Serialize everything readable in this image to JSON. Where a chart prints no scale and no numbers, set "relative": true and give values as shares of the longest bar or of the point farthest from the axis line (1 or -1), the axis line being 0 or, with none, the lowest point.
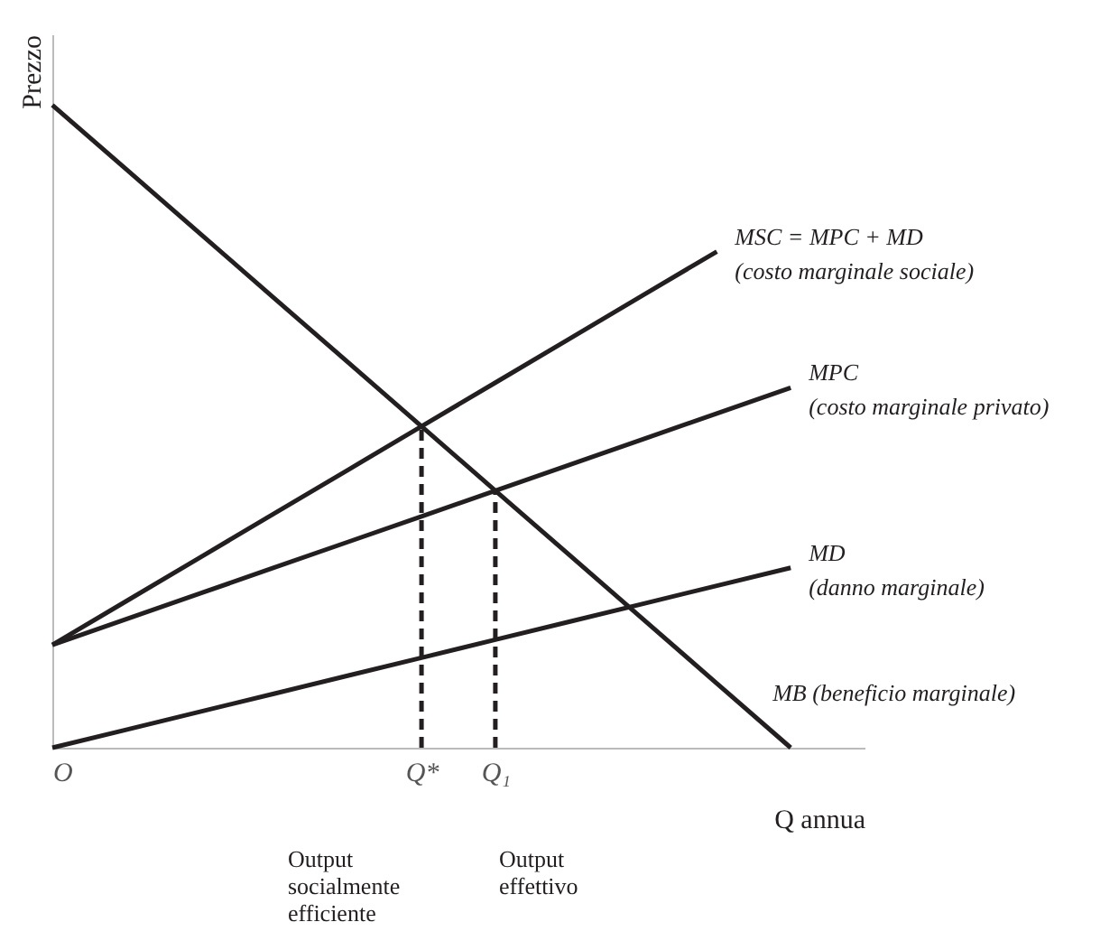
{
  "chart_data": {
    "type": "line",
    "relative": true,
    "xlabel": "Q annua",
    "ylabel": "Prezzo",
    "categories": [
      "O",
      null,
      null,
      null,
      null,
      "Q*",
      "Q₁",
      null,
      null,
      null,
      null,
      null
    ],
    "grid": false,
    "marker": "none",
    "series": [
      {
        "name": "MSC = MPC + MD\n(costo marginale sociale)",
        "color": "#231f20",
        "values": [
          0.16,
          0.228,
          0.296,
          0.364,
          0.432,
          0.5,
          0.568,
          0.636,
          0.704,
          0.772,
          null,
          null
        ]
      },
      {
        "name": "MPC\n(costo marginale privato)",
        "color": "#231f20",
        "values": [
          0.16,
          0.2,
          0.24,
          0.28,
          0.32,
          0.36,
          0.4,
          0.44,
          0.48,
          0.52,
          0.56,
          null
        ]
      },
      {
        "name": "MD\n(danno marginale)",
        "color": "#231f20",
        "values": [
          0,
          0.028,
          0.056,
          0.084,
          0.112,
          0.14,
          0.168,
          0.196,
          0.224,
          0.252,
          0.28,
          null
        ]
      },
      {
        "name": "MB (beneficio marginale)",
        "color": "#231f20",
        "values": [
          1,
          0.9,
          0.8,
          0.7,
          0.6,
          0.5,
          0.4,
          0.3,
          0.2,
          0.1,
          0,
          null
        ]
      },
      {
        "color": "#231f20",
        "line_style": "dashed",
        "x": [
          "Q*",
          "Q*"
        ],
        "values": [
          0,
          0.5
        ]
      },
      {
        "color": "#231f20",
        "line_style": "dashed",
        "x": [
          "Q₁",
          "Q₁"
        ],
        "values": [
          0,
          0.4
        ]
      }
    ],
    "annotations": [
      "Output\nsocialmente\nefficiente",
      "Output\neffettivo"
    ]
  }
}
